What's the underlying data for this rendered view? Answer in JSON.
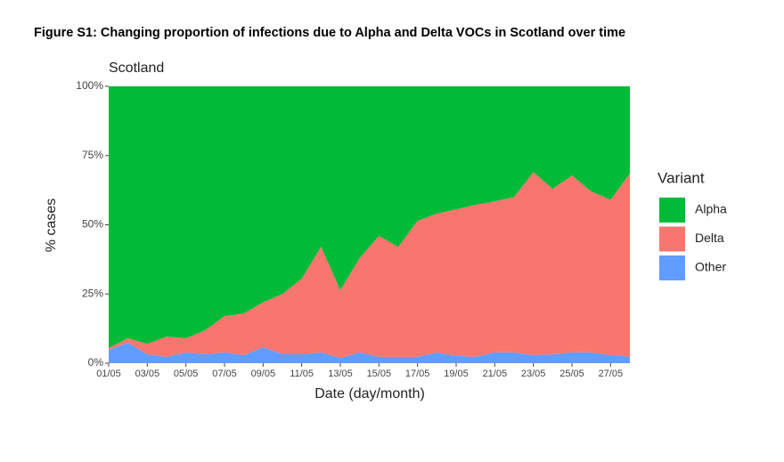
{
  "chart_data": {
    "type": "stacked_area",
    "title": "Figure S1: Changing proportion of infections due to Alpha and Delta VOCs in Scotland over time",
    "subtitle": "Scotland",
    "x_label": "Date (day/month)",
    "y_label": "% cases",
    "legend_title": "Variant",
    "legend_position": "right",
    "grid": false,
    "categories": [
      "01/05",
      null,
      "03/05",
      null,
      "05/05",
      null,
      "07/05",
      null,
      "09/05",
      null,
      "11/05",
      null,
      "13/05",
      null,
      "15/05",
      null,
      "17/05",
      null,
      "19/05",
      null,
      "21/05",
      null,
      "23/05",
      null,
      "25/05",
      null,
      "27/05",
      null
    ],
    "ylim": [
      0,
      100
    ],
    "yticks": [
      {
        "value": 0,
        "label": "0%"
      },
      {
        "value": 25,
        "label": "25%"
      },
      {
        "value": 50,
        "label": "50%"
      },
      {
        "value": 75,
        "label": "75%"
      },
      {
        "value": 100,
        "label": "100%"
      }
    ],
    "series": [
      {
        "name": "Alpha",
        "color": "#00ba38",
        "values": [
          94.5,
          91,
          93,
          90.4,
          91,
          88.1,
          83,
          82,
          78,
          75,
          69.5,
          58,
          73.6,
          62,
          54,
          58,
          48.6,
          46,
          44.4,
          42.8,
          41.5,
          40,
          31,
          37,
          32.2,
          38,
          41,
          31.5
        ]
      },
      {
        "name": "Delta",
        "color": "#f8766d",
        "values": [
          0.7,
          1.6,
          3.8,
          7.3,
          5.1,
          8.7,
          13.1,
          15.1,
          16.2,
          21.8,
          27.3,
          38.1,
          24.5,
          34.1,
          43.7,
          39.7,
          49.1,
          50.1,
          53,
          54.9,
          54.6,
          56.1,
          66.1,
          59.8,
          63.9,
          58.1,
          56.1,
          66.2
        ]
      },
      {
        "name": "Other",
        "color": "#619cff",
        "values": [
          4.8,
          7.4,
          3.2,
          2.3,
          3.9,
          3.2,
          3.9,
          2.9,
          5.8,
          3.2,
          3.2,
          3.9,
          1.9,
          3.9,
          2.3,
          2.3,
          2.3,
          3.9,
          2.6,
          2.3,
          3.9,
          3.9,
          2.9,
          3.2,
          3.9,
          3.9,
          2.9,
          2.3
        ]
      }
    ]
  }
}
